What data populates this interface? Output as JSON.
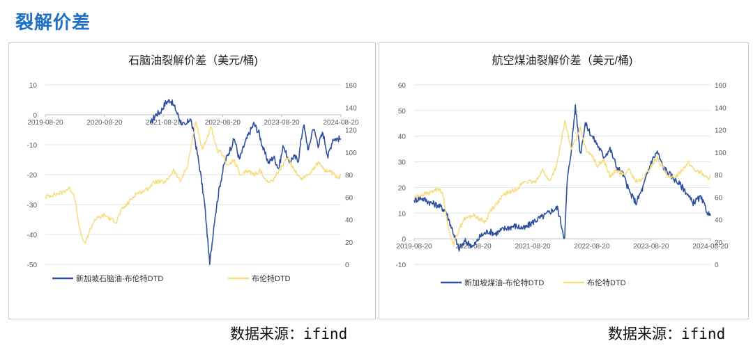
{
  "page_title": "裂解价差",
  "colors": {
    "series_blue": "#2f4f9e",
    "series_yellow": "#f5dd7f",
    "title_blue": "#1f6fc5"
  },
  "chart_data": [
    {
      "type": "line",
      "title": "石脑油裂解价差（美元/桶)",
      "x_ticks": [
        "2019-08-20",
        "2020-08-20",
        "2021-08-20",
        "2022-08-20",
        "2023-08-20",
        "2024-08-20"
      ],
      "x_range": [
        "2019-08-20",
        "2024-08-20"
      ],
      "y_left_range": [
        -50,
        10
      ],
      "y_right_range": [
        0,
        160
      ],
      "y_left_ticks": [
        "10",
        "0",
        "-10",
        "-20",
        "-30",
        "-40",
        "-50"
      ],
      "y_right_ticks": [
        "160",
        "140",
        "120",
        "100",
        "80",
        "60",
        "40",
        "20",
        "0"
      ],
      "legend_position": "bottom",
      "series": [
        {
          "name": "新加坡石脑油-布伦特DTD",
          "axis": "left",
          "x": [
            "2021-06-01",
            "2021-07-01",
            "2021-08-01",
            "2021-09-01",
            "2021-10-01",
            "2021-11-01",
            "2021-12-01",
            "2022-01-01",
            "2022-02-01",
            "2022-03-01",
            "2022-04-01",
            "2022-05-01",
            "2022-06-01",
            "2022-07-01",
            "2022-08-01",
            "2022-09-01",
            "2022-10-01",
            "2022-11-01",
            "2022-12-01",
            "2023-01-01",
            "2023-02-01",
            "2023-03-01",
            "2023-04-01",
            "2023-05-01",
            "2023-06-01",
            "2023-07-01",
            "2023-08-01",
            "2023-09-01",
            "2023-10-01",
            "2023-11-01",
            "2023-12-01",
            "2024-01-01",
            "2024-02-01",
            "2024-03-01",
            "2024-04-01",
            "2024-05-01",
            "2024-06-01",
            "2024-07-01",
            "2024-08-20"
          ],
          "y": [
            -3,
            0,
            1,
            4,
            5,
            2,
            -2,
            -4,
            -1,
            -8,
            -18,
            -30,
            -50,
            -35,
            -24,
            -16,
            -12,
            -8,
            -15,
            -10,
            -6,
            -3,
            -6,
            -12,
            -16,
            -14,
            -18,
            -10,
            -16,
            -14,
            -15,
            -3,
            -12,
            -4,
            -10,
            -6,
            -14,
            -8,
            -8
          ]
        },
        {
          "name": "布伦特DTD",
          "axis": "right",
          "x": [
            "2019-08-20",
            "2019-10-01",
            "2019-12-01",
            "2020-01-15",
            "2020-02-15",
            "2020-03-20",
            "2020-04-20",
            "2020-05-20",
            "2020-06-20",
            "2020-08-20",
            "2020-10-01",
            "2020-11-01",
            "2020-12-01",
            "2021-01-15",
            "2021-03-01",
            "2021-05-01",
            "2021-07-01",
            "2021-09-01",
            "2021-10-20",
            "2021-12-01",
            "2022-01-15",
            "2022-03-08",
            "2022-04-15",
            "2022-06-10",
            "2022-07-15",
            "2022-08-20",
            "2022-09-20",
            "2022-11-01",
            "2022-12-10",
            "2023-01-20",
            "2023-03-01",
            "2023-04-10",
            "2023-05-10",
            "2023-06-20",
            "2023-08-01",
            "2023-09-27",
            "2023-11-01",
            "2023-12-15",
            "2024-02-01",
            "2024-04-05",
            "2024-05-15",
            "2024-06-20",
            "2024-08-05",
            "2024-08-20"
          ],
          "y": [
            60,
            62,
            64,
            68,
            62,
            30,
            18,
            30,
            40,
            44,
            40,
            38,
            48,
            55,
            63,
            66,
            74,
            73,
            84,
            74,
            88,
            128,
            102,
            122,
            102,
            98,
            88,
            93,
            78,
            84,
            80,
            84,
            75,
            74,
            83,
            95,
            86,
            76,
            80,
            91,
            84,
            82,
            76,
            80
          ]
        }
      ]
    },
    {
      "type": "line",
      "title": "航空煤油裂解价差（美元/桶)",
      "x_ticks": [
        "2019-08-20",
        "2020-08-20",
        "2021-08-20",
        "2022-08-20",
        "2023-08-20",
        "2024-08-20"
      ],
      "x_range": [
        "2019-08-20",
        "2024-08-20"
      ],
      "y_left_range": [
        -10,
        60
      ],
      "y_right_range": [
        0,
        160
      ],
      "y_left_ticks": [
        "60",
        "50",
        "40",
        "30",
        "20",
        "10",
        "0",
        "-10"
      ],
      "y_right_ticks": [
        "160",
        "140",
        "120",
        "100",
        "80",
        "60",
        "40",
        "20",
        "0"
      ],
      "legend_position": "bottom",
      "series": [
        {
          "name": "新加坡煤油-布伦特DTD",
          "axis": "left",
          "x": [
            "2019-08-20",
            "2019-10-01",
            "2019-12-01",
            "2020-01-15",
            "2020-03-01",
            "2020-04-20",
            "2020-05-20",
            "2020-07-01",
            "2020-08-20",
            "2020-10-01",
            "2020-11-20",
            "2021-01-01",
            "2021-03-01",
            "2021-05-01",
            "2021-07-01",
            "2021-09-01",
            "2021-11-01",
            "2021-12-15",
            "2022-01-20",
            "2022-03-05",
            "2022-03-20",
            "2022-04-15",
            "2022-05-10",
            "2022-06-10",
            "2022-07-10",
            "2022-08-20",
            "2022-09-20",
            "2022-11-01",
            "2022-12-10",
            "2023-01-20",
            "2023-03-01",
            "2023-04-10",
            "2023-05-20",
            "2023-07-01",
            "2023-08-20",
            "2023-09-27",
            "2023-11-01",
            "2023-12-15",
            "2024-02-01",
            "2024-03-15",
            "2024-05-01",
            "2024-06-20",
            "2024-08-05",
            "2024-08-20"
          ],
          "y": [
            15,
            16,
            14,
            13,
            11,
            2,
            -4,
            -1,
            -3,
            1,
            3,
            2,
            4,
            5,
            4,
            7,
            9,
            11,
            12,
            0,
            22,
            35,
            52,
            33,
            45,
            40,
            37,
            32,
            35,
            28,
            25,
            18,
            14,
            20,
            30,
            34,
            28,
            25,
            22,
            19,
            14,
            16,
            10,
            9
          ]
        },
        {
          "name": "布伦特DTD",
          "axis": "right",
          "x": [
            "2019-08-20",
            "2019-10-01",
            "2019-12-01",
            "2020-01-15",
            "2020-02-15",
            "2020-03-20",
            "2020-04-20",
            "2020-05-20",
            "2020-06-20",
            "2020-08-20",
            "2020-10-01",
            "2020-11-01",
            "2020-12-01",
            "2021-01-15",
            "2021-03-01",
            "2021-05-01",
            "2021-07-01",
            "2021-09-01",
            "2021-10-20",
            "2021-12-01",
            "2022-01-15",
            "2022-03-08",
            "2022-04-15",
            "2022-06-10",
            "2022-07-15",
            "2022-08-20",
            "2022-09-20",
            "2022-11-01",
            "2022-12-10",
            "2023-01-20",
            "2023-03-01",
            "2023-04-10",
            "2023-05-10",
            "2023-06-20",
            "2023-08-01",
            "2023-09-27",
            "2023-11-01",
            "2023-12-15",
            "2024-02-01",
            "2024-04-05",
            "2024-05-15",
            "2024-06-20",
            "2024-08-05",
            "2024-08-20"
          ],
          "y": [
            60,
            62,
            64,
            68,
            62,
            30,
            18,
            30,
            40,
            44,
            40,
            38,
            48,
            55,
            63,
            66,
            74,
            73,
            84,
            74,
            88,
            128,
            102,
            122,
            102,
            98,
            88,
            93,
            78,
            84,
            80,
            84,
            75,
            74,
            83,
            95,
            86,
            76,
            80,
            91,
            84,
            82,
            76,
            80
          ]
        }
      ]
    }
  ],
  "sources": [
    "数据来源：ifind",
    "数据来源：ifind"
  ]
}
